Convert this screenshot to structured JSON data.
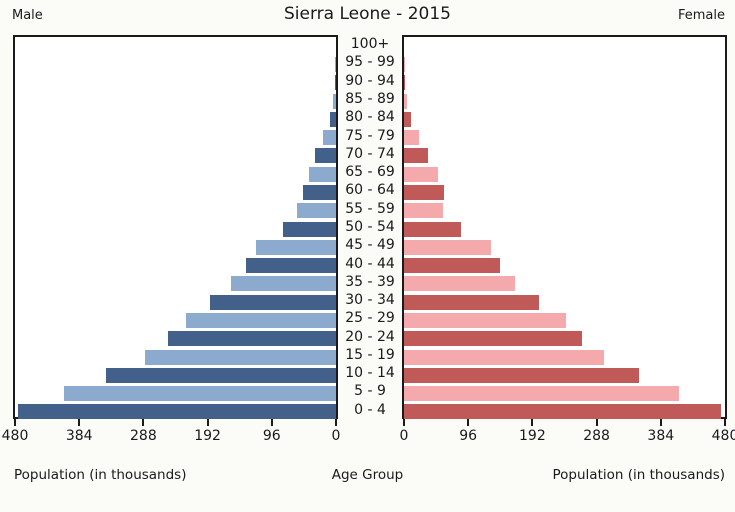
{
  "chart_data": {
    "type": "bar",
    "variant": "population-pyramid",
    "title": "Sierra Leone - 2015",
    "left_series_label": "Male",
    "right_series_label": "Female",
    "age_axis_title": "Age Group",
    "population_axis_title_left": "Population (in thousands)",
    "population_axis_title_right": "Population (in thousands)",
    "xlabel": "Population (in thousands)",
    "ylabel": "Age Group",
    "xlim": [
      0,
      480
    ],
    "grid": false,
    "left_ticks": [
      480,
      384,
      288,
      192,
      96,
      0
    ],
    "right_ticks": [
      0,
      96,
      192,
      288,
      384,
      480
    ],
    "age_groups": [
      "100+",
      "95 - 99",
      "90 - 94",
      "85 - 89",
      "80 - 84",
      "75 - 79",
      "70 - 74",
      "65 - 69",
      "60 - 64",
      "55 - 59",
      "50 - 54",
      "45 - 49",
      "40 - 44",
      "35 - 39",
      "30 - 34",
      "25 - 29",
      "20 - 24",
      "15 - 19",
      "10 - 14",
      "5 - 9",
      "0 - 4"
    ],
    "series": [
      {
        "name": "Male",
        "side": "left",
        "values": [
          0,
          1,
          2,
          4,
          9,
          19,
          31,
          41,
          50,
          58,
          80,
          119,
          135,
          157,
          188,
          224,
          251,
          285,
          344,
          407,
          476
        ]
      },
      {
        "name": "Female",
        "side": "right",
        "values": [
          0,
          1,
          2,
          5,
          10,
          22,
          36,
          51,
          60,
          58,
          85,
          130,
          144,
          166,
          202,
          242,
          266,
          299,
          351,
          411,
          474
        ]
      }
    ],
    "colors": {
      "male_dark": "#42608a",
      "male_light": "#8caace",
      "female_dark": "#c05a58",
      "female_light": "#f4aaac",
      "axis": "#1a1a1a",
      "panel_background": "#ffffff",
      "page_background": "#fbfbf8"
    }
  }
}
